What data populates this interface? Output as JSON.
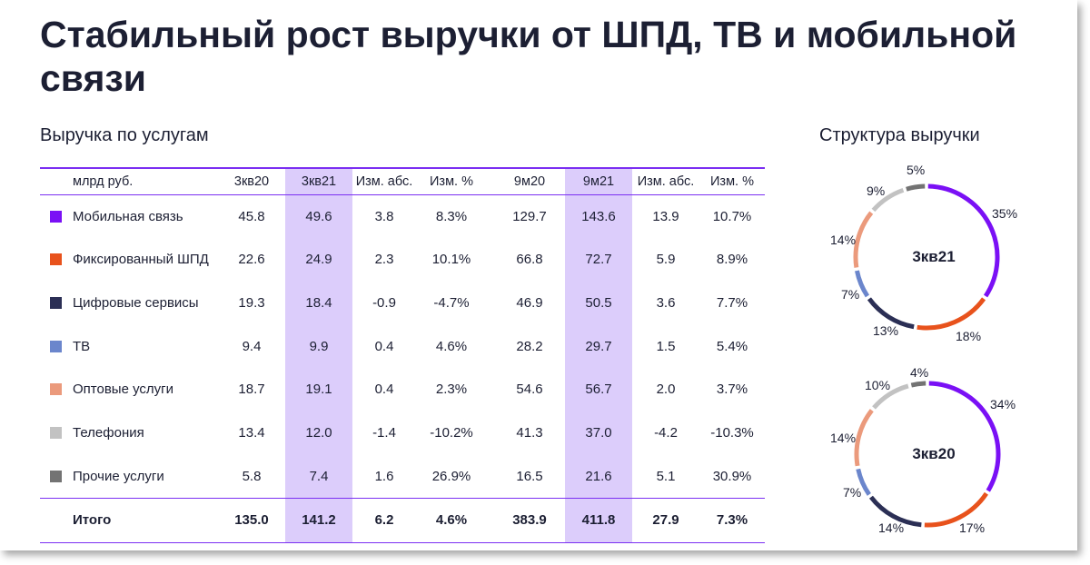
{
  "title": "Стабильный рост выручки от ШПД, ТВ и мобильной связи",
  "table": {
    "heading": "Выручка по услугам",
    "columns": [
      "млрд руб.",
      "3кв20",
      "3кв21",
      "Изм. абс.",
      "Изм. %",
      "9м20",
      "9м21",
      "Изм. абс.",
      "Изм. %"
    ],
    "rows": [
      {
        "label": "Мобильная связь",
        "color": "#7a10f5",
        "values": [
          "45.8",
          "49.6",
          "3.8",
          "8.3%",
          "129.7",
          "143.6",
          "13.9",
          "10.7%"
        ]
      },
      {
        "label": "Фиксированный ШПД",
        "color": "#e8521c",
        "values": [
          "22.6",
          "24.9",
          "2.3",
          "10.1%",
          "66.8",
          "72.7",
          "5.9",
          "8.9%"
        ]
      },
      {
        "label": "Цифровые сервисы",
        "color": "#2b2f55",
        "values": [
          "19.3",
          "18.4",
          "-0.9",
          "-4.7%",
          "46.9",
          "50.5",
          "3.6",
          "7.7%"
        ]
      },
      {
        "label": "ТВ",
        "color": "#6b86cc",
        "values": [
          "9.4",
          "9.9",
          "0.4",
          "4.6%",
          "28.2",
          "29.7",
          "1.5",
          "5.4%"
        ]
      },
      {
        "label": "Оптовые услуги",
        "color": "#eb9a7c",
        "values": [
          "18.7",
          "19.1",
          "0.4",
          "2.3%",
          "54.6",
          "56.7",
          "2.0",
          "3.7%"
        ]
      },
      {
        "label": "Телефония",
        "color": "#c2c2c2",
        "values": [
          "13.4",
          "12.0",
          "-1.4",
          "-10.2%",
          "41.3",
          "37.0",
          "-4.2",
          "-10.3%"
        ]
      },
      {
        "label": "Прочие услуги",
        "color": "#737373",
        "values": [
          "5.8",
          "7.4",
          "1.6",
          "26.9%",
          "16.5",
          "21.6",
          "5.1",
          "30.9%"
        ]
      }
    ],
    "total": {
      "label": "Итого",
      "values": [
        "135.0",
        "141.2",
        "6.2",
        "4.6%",
        "383.9",
        "411.8",
        "27.9",
        "7.3%"
      ]
    }
  },
  "structure": {
    "heading": "Структура выручки",
    "colors": [
      "#7a10f5",
      "#e8521c",
      "#2b2f55",
      "#6b86cc",
      "#eb9a7c",
      "#c2c2c2",
      "#737373"
    ]
  },
  "chart_data": [
    {
      "type": "pie",
      "title": "3кв21",
      "categories": [
        "Мобильная связь",
        "Фиксированный ШПД",
        "Цифровые сервисы",
        "ТВ",
        "Оптовые услуги",
        "Телефония",
        "Прочие услуги"
      ],
      "values": [
        35,
        18,
        13,
        7,
        14,
        9,
        5
      ],
      "labels": [
        "35%",
        "18%",
        "13%",
        "7%",
        "14%",
        "9%",
        "5%"
      ]
    },
    {
      "type": "pie",
      "title": "3кв20",
      "categories": [
        "Мобильная связь",
        "Фиксированный ШПД",
        "Цифровые сервисы",
        "ТВ",
        "Оптовые услуги",
        "Телефония",
        "Прочие услуги"
      ],
      "values": [
        34,
        17,
        14,
        7,
        14,
        10,
        4
      ],
      "labels": [
        "34%",
        "17%",
        "14%",
        "7%",
        "14%",
        "10%",
        "4%"
      ]
    }
  ]
}
